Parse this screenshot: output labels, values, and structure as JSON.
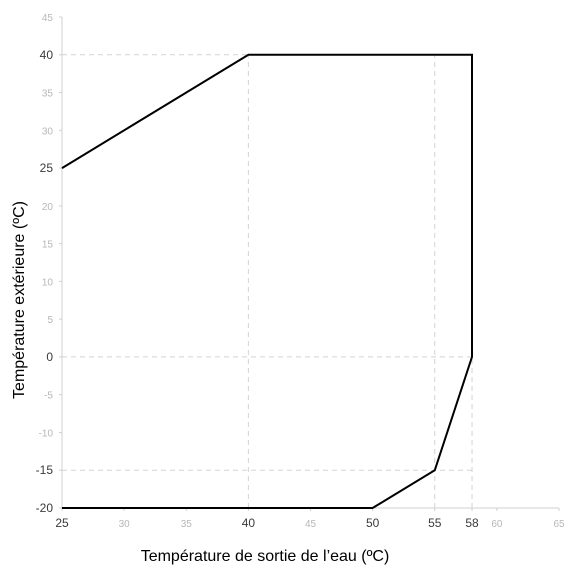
{
  "chart_data": {
    "type": "line",
    "xlabel": "Température de sortie de l’eau (ºC)",
    "ylabel": "Température extérieure (ºC)",
    "xlim": [
      25,
      65
    ],
    "ylim": [
      -20,
      45
    ],
    "x_ticks": [
      {
        "value": 25,
        "label": "25",
        "emphasis": true
      },
      {
        "value": 30,
        "label": "30",
        "emphasis": false
      },
      {
        "value": 35,
        "label": "35",
        "emphasis": false
      },
      {
        "value": 40,
        "label": "40",
        "emphasis": true
      },
      {
        "value": 45,
        "label": "45",
        "emphasis": false
      },
      {
        "value": 50,
        "label": "50",
        "emphasis": true
      },
      {
        "value": 55,
        "label": "55",
        "emphasis": true
      },
      {
        "value": 58,
        "label": "58",
        "emphasis": true
      },
      {
        "value": 60,
        "label": "60",
        "emphasis": false
      },
      {
        "value": 65,
        "label": "65",
        "emphasis": false
      }
    ],
    "y_ticks": [
      {
        "value": 45,
        "label": "45",
        "emphasis": false
      },
      {
        "value": 40,
        "label": "40",
        "emphasis": true
      },
      {
        "value": 35,
        "label": "35",
        "emphasis": false
      },
      {
        "value": 30,
        "label": "30",
        "emphasis": false
      },
      {
        "value": 25,
        "label": "25",
        "emphasis": true
      },
      {
        "value": 20,
        "label": "20",
        "emphasis": false
      },
      {
        "value": 15,
        "label": "15",
        "emphasis": false
      },
      {
        "value": 10,
        "label": "10",
        "emphasis": false
      },
      {
        "value": 5,
        "label": "5",
        "emphasis": false
      },
      {
        "value": 0,
        "label": "0",
        "emphasis": true
      },
      {
        "value": -5,
        "label": "-5",
        "emphasis": false
      },
      {
        "value": -10,
        "label": "-10",
        "emphasis": false
      },
      {
        "value": -15,
        "label": "-15",
        "emphasis": true
      },
      {
        "value": -20,
        "label": "-20",
        "emphasis": true
      }
    ],
    "grid": {
      "vertical": [
        40,
        55,
        58
      ],
      "horizontal": [
        40,
        0,
        -15
      ]
    },
    "series": [
      {
        "color": "#000000",
        "points": [
          {
            "x": 25,
            "y": 25
          },
          {
            "x": 40,
            "y": 40
          },
          {
            "x": 58,
            "y": 40
          },
          {
            "x": 58,
            "y": 0
          },
          {
            "x": 55,
            "y": -15
          },
          {
            "x": 50,
            "y": -20
          },
          {
            "x": 25,
            "y": -20
          }
        ]
      }
    ]
  }
}
